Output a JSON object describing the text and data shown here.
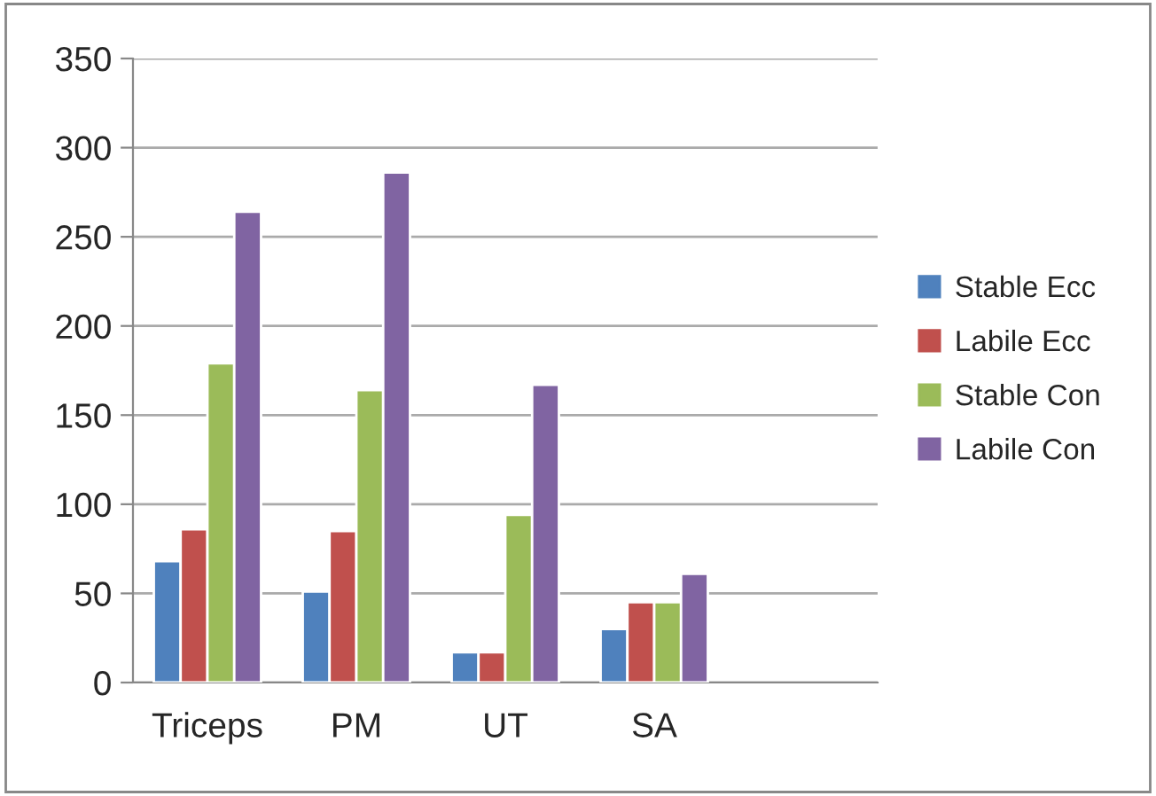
{
  "chart_data": {
    "type": "bar",
    "categories": [
      "Triceps",
      "PM",
      "UT",
      "SA",
      null
    ],
    "series": [
      {
        "name": "Stable Ecc",
        "color": "#4f81bd",
        "values": [
          68,
          51,
          17,
          30,
          null
        ]
      },
      {
        "name": "Labile Ecc",
        "color": "#c0504d",
        "values": [
          86,
          85,
          17,
          45,
          null
        ]
      },
      {
        "name": "Stable Con",
        "color": "#9bbb59",
        "values": [
          179,
          164,
          94,
          45,
          null
        ]
      },
      {
        "name": "Labile Con",
        "color": "#8064a2",
        "values": [
          264,
          286,
          167,
          61,
          null
        ]
      }
    ],
    "ylim": [
      0,
      350
    ],
    "yticks": [
      0,
      50,
      100,
      150,
      200,
      250,
      300,
      350
    ],
    "grid": "y",
    "legend": "right"
  }
}
